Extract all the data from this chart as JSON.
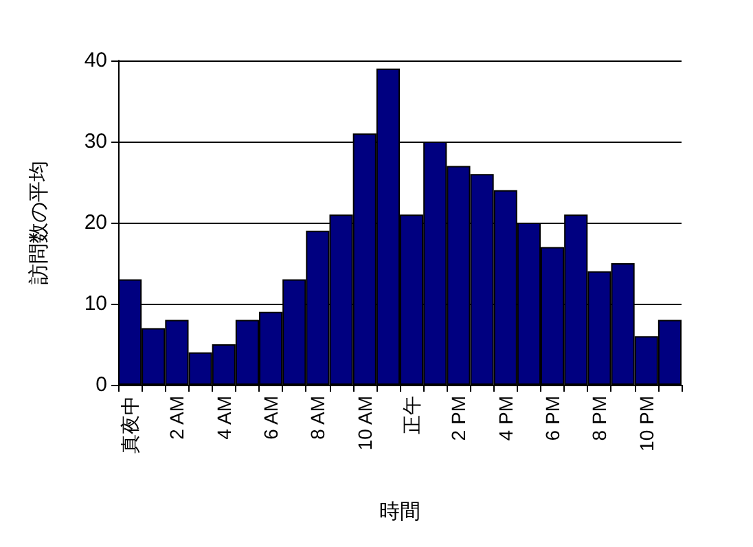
{
  "chart_data": {
    "type": "bar",
    "xlabel": "時間",
    "ylabel": "訪問数の平均",
    "categories": [
      "真夜中",
      null,
      "2 AM",
      null,
      "4 AM",
      null,
      "6 AM",
      null,
      "8 AM",
      null,
      "10 AM",
      null,
      "正午",
      null,
      "2 PM",
      null,
      "4 PM",
      null,
      "6 PM",
      null,
      "8 PM",
      null,
      "10 PM",
      null
    ],
    "values": [
      13,
      7,
      8,
      4,
      5,
      8,
      9,
      13,
      19,
      21,
      31,
      39,
      21,
      30,
      27,
      26,
      24,
      20,
      17,
      21,
      14,
      15,
      6,
      8
    ],
    "color": "#000080",
    "ylim": [
      0,
      40
    ],
    "yticks": [
      0,
      10,
      20,
      30,
      40
    ],
    "grid": "y"
  }
}
